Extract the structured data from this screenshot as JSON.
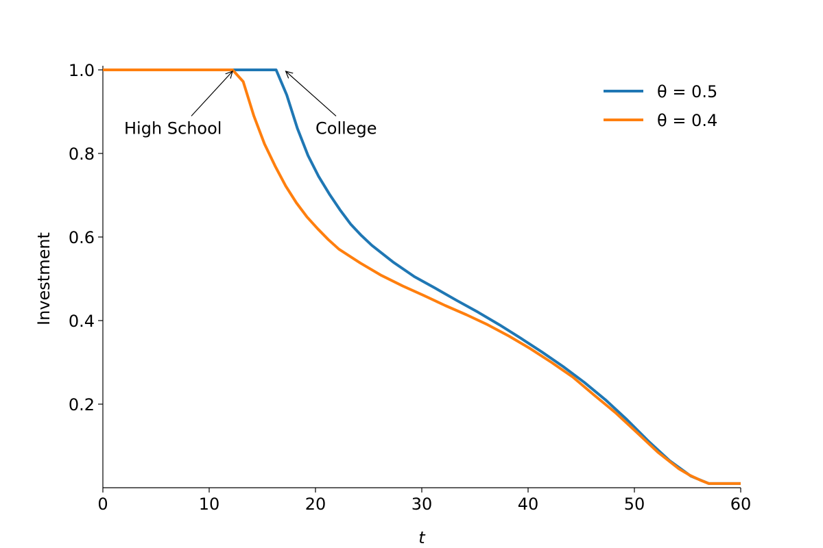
{
  "chart_data": {
    "type": "line",
    "xlabel": "t",
    "ylabel": "Investment",
    "xlim": [
      0,
      60
    ],
    "ylim": [
      0.0,
      1.0
    ],
    "xticks": [
      0,
      10,
      20,
      30,
      40,
      50,
      60
    ],
    "yticks": [
      0.2,
      0.4,
      0.6,
      0.8,
      1.0
    ],
    "xtick_labels": [
      "0",
      "10",
      "20",
      "30",
      "40",
      "50",
      "60"
    ],
    "ytick_labels": [
      "0.2",
      "0.4",
      "0.6",
      "0.8",
      "1.0"
    ],
    "grid": false,
    "legend_position": "top-right",
    "series": [
      {
        "name": "θ = 0.5",
        "color": "#1f77b4",
        "x": [
          0,
          5,
          10,
          15,
          16.3,
          17.3,
          18.3,
          19.3,
          20.3,
          21.3,
          22.3,
          23.3,
          24.3,
          25.3,
          27.3,
          29.3,
          31.3,
          33.3,
          35.3,
          37.3,
          39.3,
          41.3,
          43.3,
          45.3,
          47.3,
          49.3,
          51.3,
          53.3,
          55.3,
          57.0,
          60.0
        ],
        "values": [
          1.0,
          1.0,
          1.0,
          1.0,
          1.0,
          0.94,
          0.86,
          0.795,
          0.745,
          0.703,
          0.665,
          0.631,
          0.604,
          0.58,
          0.54,
          0.505,
          0.477,
          0.448,
          0.42,
          0.39,
          0.358,
          0.325,
          0.29,
          0.252,
          0.21,
          0.163,
          0.112,
          0.065,
          0.028,
          0.01,
          0.01
        ]
      },
      {
        "name": "θ = 0.4",
        "color": "#ff7f0e",
        "x": [
          0,
          5,
          10,
          12.2,
          13.2,
          14.2,
          15.2,
          16.2,
          17.2,
          18.2,
          19.2,
          20.2,
          21.2,
          22.2,
          24.2,
          26.2,
          28.2,
          30.2,
          32.2,
          34.2,
          36.2,
          38.2,
          40.2,
          42.2,
          44.2,
          46.2,
          48.2,
          50.2,
          52.2,
          54.2,
          55.2,
          56.2,
          57.0,
          60.0
        ],
        "values": [
          1.0,
          1.0,
          1.0,
          1.0,
          0.972,
          0.89,
          0.823,
          0.77,
          0.722,
          0.682,
          0.648,
          0.62,
          0.594,
          0.571,
          0.538,
          0.508,
          0.483,
          0.46,
          0.436,
          0.414,
          0.39,
          0.363,
          0.333,
          0.3,
          0.265,
          0.222,
          0.18,
          0.133,
          0.085,
          0.045,
          0.03,
          0.018,
          0.01,
          0.01
        ]
      }
    ],
    "annotations": [
      {
        "text": "High School",
        "x": 12.2,
        "y": 1.0,
        "text_x": 2.0,
        "text_y": 0.86
      },
      {
        "text": "College",
        "x": 17.2,
        "y": 1.0,
        "text_x": 20.0,
        "text_y": 0.86
      }
    ]
  }
}
